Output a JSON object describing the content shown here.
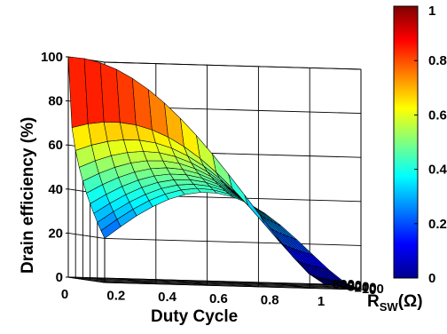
{
  "chart_data": {
    "type": "surface3d",
    "xlabel": "Duty Cycle",
    "ylabel": "Drain efficiency (%)",
    "zlabel_main": "R",
    "zlabel_sub": "SW",
    "zlabel_unit": "(Ω)",
    "x_ticks": [
      "0",
      "0.2",
      "0.4",
      "0.6",
      "0.8",
      "1"
    ],
    "y_ticks": [
      "0",
      "20",
      "40",
      "60",
      "80",
      "100"
    ],
    "r_ticks": [
      "0",
      "100",
      "200",
      "300",
      "400",
      "500"
    ],
    "colorbar_ticks": [
      "0",
      "0.2",
      "0.4",
      "0.6",
      "0.8",
      "1"
    ],
    "xlim": [
      0,
      1
    ],
    "ylim": [
      0,
      100
    ],
    "rlim": [
      0,
      500
    ],
    "colormap": "jet",
    "grid": true,
    "x": [
      0,
      0.0625,
      0.125,
      0.1875,
      0.25,
      0.3125,
      0.375,
      0.4375,
      0.5,
      0.5625,
      0.625,
      0.6875,
      0.75,
      0.8125,
      0.875,
      0.9375,
      1
    ],
    "r_sw": [
      0,
      50,
      100,
      150,
      200,
      250,
      300,
      350,
      400,
      450,
      500
    ],
    "efficiency_at_rsw_0": [
      100,
      99.4,
      97.6,
      94.6,
      90.6,
      85.6,
      79.6,
      72.8,
      65.2,
      57.1,
      48.4,
      39.5,
      30.5,
      21.7,
      13.3,
      5.9,
      0
    ],
    "efficiency_at_rsw_500": [
      20,
      26,
      31,
      33.5,
      34,
      32.6,
      29.7,
      25.9,
      21.7,
      17.4,
      13.3,
      9.6,
      6.4,
      3.7,
      1.7,
      0.5,
      0
    ]
  }
}
